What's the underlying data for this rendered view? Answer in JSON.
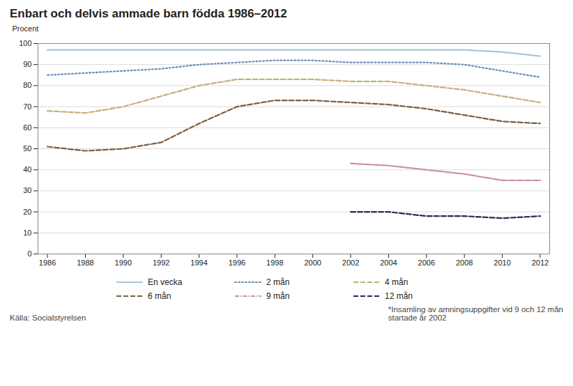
{
  "chart_data": {
    "type": "line",
    "title": "Enbart och delvis ammade barn födda 1986–2012",
    "ylabel": "Procent",
    "annotations": [
      "Källa: Socialstyrelsen",
      "*Insamling av amningsuppgifter vid 9 och 12 mån\nstartade år 2002"
    ],
    "x": [
      1986,
      1988,
      1990,
      1992,
      1994,
      1996,
      1998,
      2000,
      2002,
      2004,
      2006,
      2008,
      2010,
      2012
    ],
    "xlim": [
      1985.5,
      2012.5
    ],
    "xticks": [
      1986,
      1988,
      1990,
      1992,
      1994,
      1996,
      1998,
      2000,
      2002,
      2004,
      2006,
      2008,
      2010,
      2012
    ],
    "ylim": [
      0,
      100
    ],
    "yticks": [
      0,
      10,
      20,
      30,
      40,
      50,
      60,
      70,
      80,
      90,
      100
    ],
    "grid": true,
    "legend": "bottom",
    "series": [
      {
        "name": "En vecka",
        "color": "#aac5d8",
        "line_style": "solid",
        "values": [
          97,
          97,
          97,
          97,
          97,
          97,
          97,
          97,
          97,
          97,
          97,
          97,
          96,
          94
        ]
      },
      {
        "name": "2 mån",
        "color": "#6b8fbb",
        "line_style": "dotted",
        "values": [
          85,
          86,
          87,
          88,
          90,
          91,
          92,
          92,
          91,
          91,
          91,
          90,
          87,
          84
        ]
      },
      {
        "name": "4 mån",
        "color": "#c4af78",
        "line_style": "dashed",
        "values": [
          68,
          67,
          70,
          75,
          80,
          83,
          83,
          83,
          82,
          82,
          80,
          78,
          75,
          72
        ]
      },
      {
        "name": "6 mån",
        "color": "#7a5c42",
        "line_style": "dashed",
        "values": [
          51,
          49,
          50,
          53,
          62,
          70,
          73,
          73,
          72,
          71,
          69,
          66,
          63,
          62
        ]
      },
      {
        "name": "9 mån",
        "color": "#c99098",
        "line_style": "dashdot",
        "values": [
          null,
          null,
          null,
          null,
          null,
          null,
          null,
          null,
          43,
          42,
          40,
          38,
          35,
          35
        ]
      },
      {
        "name": "12 mån",
        "color": "#1e2d4e",
        "line_style": "dashed",
        "values": [
          null,
          null,
          null,
          null,
          null,
          null,
          null,
          null,
          20,
          20,
          18,
          18,
          17,
          18
        ]
      }
    ]
  }
}
